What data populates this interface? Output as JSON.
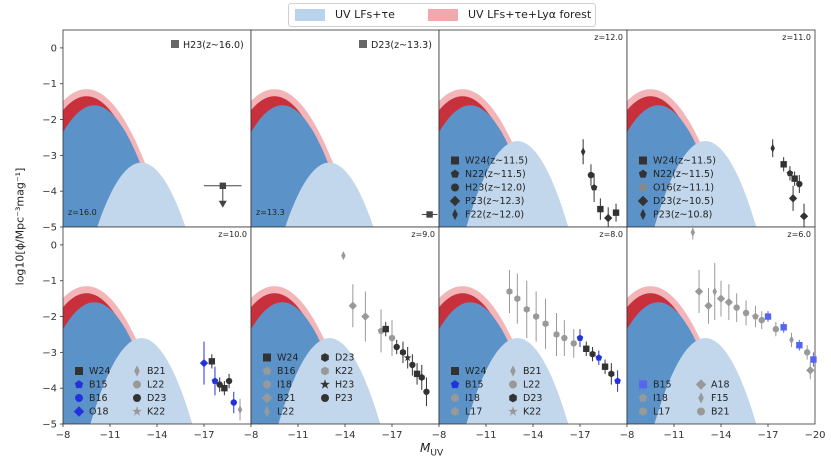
{
  "legend": [
    {
      "label": "UV LFs+τe",
      "color": "#b9d3ec"
    },
    {
      "label": "UV LFs+τe+Lyα forest",
      "color": "#f2a9ad"
    }
  ],
  "axes": {
    "xlabel": "M_UV",
    "ylabel": "log10[ϕ/Mpc⁻³mag⁻¹]"
  },
  "chart_data": {
    "type": "scatter",
    "grid": "2x4 panels, shared axes",
    "xlim": [
      -8,
      -20
    ],
    "ylim": [
      -5,
      0.5
    ],
    "x_ticks": [
      -8,
      -11,
      -14,
      -17
    ],
    "y_ticks": [
      0,
      -1,
      -2,
      -3,
      -4,
      -5
    ],
    "panels": [
      {
        "z_label": "z=16.0",
        "z_pos": "bottom-left",
        "legend": [
          {
            "marker": "square",
            "color": "#666666",
            "label": "H23(z~16.0)"
          }
        ],
        "points": [
          {
            "x": -18.2,
            "y": -3.85,
            "xerr": 1.2,
            "upper": true,
            "color": "#444444",
            "marker": "square"
          }
        ]
      },
      {
        "z_label": "z=13.3",
        "z_pos": "bottom-left",
        "legend": [
          {
            "marker": "square",
            "color": "#666666",
            "label": "D23(z~13.3)"
          }
        ],
        "points": [
          {
            "x": -19.4,
            "y": -4.65,
            "xerr": 0.5,
            "color": "#444444",
            "marker": "square"
          }
        ]
      },
      {
        "z_label": "z=12.0",
        "z_pos": "top-right",
        "legend": [
          {
            "marker": "square",
            "color": "#333333",
            "label": "W24(z~11.5)"
          },
          {
            "marker": "pentagon",
            "color": "#333333",
            "label": "N22(z~11.5)"
          },
          {
            "marker": "circle",
            "color": "#333333",
            "label": "H23(z~12.0)"
          },
          {
            "marker": "diamond",
            "color": "#333333",
            "label": "P23(z~12.3)"
          },
          {
            "marker": "thin-diamond",
            "color": "#333333",
            "label": "F22(z~12.0)"
          }
        ],
        "points": [
          {
            "x": -17.2,
            "y": -2.9,
            "err": 0.35,
            "color": "#333333",
            "marker": "thin-diamond"
          },
          {
            "x": -17.7,
            "y": -3.55,
            "err": 0.3,
            "color": "#333333",
            "marker": "circle"
          },
          {
            "x": -17.9,
            "y": -3.9,
            "err": 0.4,
            "color": "#333333",
            "marker": "pentagon"
          },
          {
            "x": -18.3,
            "y": -4.5,
            "err": 0.3,
            "color": "#333333",
            "marker": "square"
          },
          {
            "x": -18.8,
            "y": -4.75,
            "err": 0.3,
            "color": "#333333",
            "marker": "diamond"
          },
          {
            "x": -19.3,
            "y": -4.6,
            "err": 0.25,
            "color": "#333333",
            "marker": "square"
          }
        ]
      },
      {
        "z_label": "z=11.0",
        "z_pos": "top-right",
        "legend": [
          {
            "marker": "square",
            "color": "#333333",
            "label": "W24(z~11.5)"
          },
          {
            "marker": "pentagon",
            "color": "#333333",
            "label": "N22(z~11.5)"
          },
          {
            "marker": "circle",
            "color": "#888888",
            "label": "O16(z~11.1)"
          },
          {
            "marker": "diamond",
            "color": "#333333",
            "label": "D23(z~10.5)"
          },
          {
            "marker": "thin-diamond",
            "color": "#333333",
            "label": "P23(z~10.8)"
          }
        ],
        "points": [
          {
            "x": -17.3,
            "y": -2.8,
            "err": 0.25,
            "color": "#333333",
            "marker": "thin-diamond"
          },
          {
            "x": -18.0,
            "y": -3.25,
            "err": 0.2,
            "color": "#333333",
            "marker": "square"
          },
          {
            "x": -18.4,
            "y": -3.5,
            "err": 0.2,
            "color": "#333333",
            "marker": "pentagon"
          },
          {
            "x": -18.7,
            "y": -3.65,
            "err": 0.2,
            "color": "#333333",
            "marker": "square"
          },
          {
            "x": -19.0,
            "y": -3.8,
            "err": 0.25,
            "color": "#333333",
            "marker": "circle"
          },
          {
            "x": -18.6,
            "y": -4.2,
            "err": 0.35,
            "color": "#333333",
            "marker": "diamond"
          },
          {
            "x": -19.3,
            "y": -4.7,
            "err": 0.35,
            "color": "#333333",
            "marker": "diamond"
          }
        ]
      },
      {
        "z_label": "z=10.0",
        "z_pos": "top-right",
        "legend": [
          {
            "marker": "square",
            "color": "#333333",
            "label": "W24"
          },
          {
            "marker": "pentagon",
            "color": "#2233dd",
            "label": "B15"
          },
          {
            "marker": "circle",
            "color": "#2233dd",
            "label": "B16"
          },
          {
            "marker": "diamond",
            "color": "#2233dd",
            "label": "O18"
          },
          {
            "marker": "thin-diamond",
            "color": "#999999",
            "label": "B21"
          },
          {
            "marker": "circle",
            "color": "#999999",
            "label": "L22"
          },
          {
            "marker": "circle",
            "color": "#333333",
            "label": "D23"
          },
          {
            "marker": "star",
            "color": "#999999",
            "label": "K22"
          }
        ],
        "points": [
          {
            "x": -17.0,
            "y": -3.3,
            "err": 0.6,
            "color": "#2233dd",
            "marker": "diamond"
          },
          {
            "x": -17.5,
            "y": -3.25,
            "err": 0.2,
            "color": "#333333",
            "marker": "square"
          },
          {
            "x": -17.7,
            "y": -3.8,
            "err": 0.4,
            "color": "#2233dd",
            "marker": "pentagon"
          },
          {
            "x": -18.0,
            "y": -3.9,
            "err": 0.2,
            "color": "#333333",
            "marker": "circle"
          },
          {
            "x": -18.3,
            "y": -4.0,
            "err": 0.2,
            "color": "#333333",
            "marker": "square"
          },
          {
            "x": -18.6,
            "y": -3.8,
            "err": 0.2,
            "color": "#333333",
            "marker": "circle"
          },
          {
            "x": -18.9,
            "y": -4.4,
            "err": 0.3,
            "color": "#2233dd",
            "marker": "circle"
          },
          {
            "x": -19.3,
            "y": -4.6,
            "err": 0.3,
            "color": "#999999",
            "marker": "thin-diamond"
          }
        ]
      },
      {
        "z_label": "z=9.0",
        "z_pos": "top-right",
        "legend": [
          {
            "marker": "square",
            "color": "#333333",
            "label": "W24"
          },
          {
            "marker": "pentagon",
            "color": "#999999",
            "label": "B16"
          },
          {
            "marker": "circle",
            "color": "#999999",
            "label": "I18"
          },
          {
            "marker": "diamond",
            "color": "#999999",
            "label": "B21"
          },
          {
            "marker": "thin-diamond",
            "color": "#999999",
            "label": "L22"
          },
          {
            "marker": "hexagon",
            "color": "#333333",
            "label": "D23"
          },
          {
            "marker": "hexagon",
            "color": "#999999",
            "label": "K22"
          },
          {
            "marker": "star",
            "color": "#333333",
            "label": "H23"
          },
          {
            "marker": "circle",
            "color": "#333333",
            "label": "P23"
          }
        ],
        "points": [
          {
            "x": -13.9,
            "y": -0.3,
            "err": 0.1,
            "color": "#999999",
            "marker": "thin-diamond"
          },
          {
            "x": -14.5,
            "y": -1.7,
            "err": 0.6,
            "color": "#999999",
            "marker": "diamond"
          },
          {
            "x": -15.3,
            "y": -2.0,
            "err": 0.7,
            "color": "#999999",
            "marker": "diamond"
          },
          {
            "x": -16.3,
            "y": -2.4,
            "err": 0.6,
            "color": "#999999",
            "marker": "pentagon"
          },
          {
            "x": -16.6,
            "y": -2.35,
            "err": 0.2,
            "color": "#333333",
            "marker": "square"
          },
          {
            "x": -17.0,
            "y": -2.6,
            "err": 0.5,
            "color": "#999999",
            "marker": "circle"
          },
          {
            "x": -17.3,
            "y": -2.85,
            "err": 0.2,
            "color": "#333333",
            "marker": "circle"
          },
          {
            "x": -17.7,
            "y": -3.0,
            "err": 0.3,
            "color": "#333333",
            "marker": "hexagon"
          },
          {
            "x": -18.0,
            "y": -3.15,
            "err": 0.3,
            "color": "#333333",
            "marker": "star"
          },
          {
            "x": -18.3,
            "y": -3.35,
            "err": 0.3,
            "color": "#333333",
            "marker": "circle"
          },
          {
            "x": -18.6,
            "y": -3.6,
            "err": 0.3,
            "color": "#333333",
            "marker": "square"
          },
          {
            "x": -18.9,
            "y": -3.7,
            "err": 0.35,
            "color": "#333333",
            "marker": "hexagon"
          },
          {
            "x": -19.2,
            "y": -4.1,
            "err": 0.4,
            "color": "#333333",
            "marker": "circle"
          }
        ]
      },
      {
        "z_label": "z=8.0",
        "z_pos": "top-right",
        "legend": [
          {
            "marker": "square",
            "color": "#333333",
            "label": "W24"
          },
          {
            "marker": "pentagon",
            "color": "#2233dd",
            "label": "B15"
          },
          {
            "marker": "circle",
            "color": "#999999",
            "label": "I18"
          },
          {
            "marker": "hexagon",
            "color": "#999999",
            "label": "L17"
          },
          {
            "marker": "thin-diamond",
            "color": "#999999",
            "label": "B21"
          },
          {
            "marker": "circle",
            "color": "#999999",
            "label": "L22"
          },
          {
            "marker": "hexagon",
            "color": "#333333",
            "label": "D23"
          },
          {
            "marker": "star",
            "color": "#999999",
            "label": "K22"
          }
        ],
        "points": [
          {
            "x": -12.5,
            "y": -1.3,
            "err": 0.6,
            "color": "#999999",
            "marker": "hexagon"
          },
          {
            "x": -13.0,
            "y": -1.5,
            "err": 0.7,
            "color": "#999999",
            "marker": "hexagon"
          },
          {
            "x": -13.6,
            "y": -1.8,
            "err": 0.8,
            "color": "#999999",
            "marker": "hexagon"
          },
          {
            "x": -14.2,
            "y": -2.0,
            "err": 0.7,
            "color": "#999999",
            "marker": "hexagon"
          },
          {
            "x": -14.8,
            "y": -2.2,
            "err": 0.7,
            "color": "#999999",
            "marker": "hexagon"
          },
          {
            "x": -15.5,
            "y": -2.5,
            "err": 0.6,
            "color": "#999999",
            "marker": "hexagon"
          },
          {
            "x": -16.0,
            "y": -2.6,
            "err": 0.5,
            "color": "#999999",
            "marker": "circle"
          },
          {
            "x": -16.6,
            "y": -2.75,
            "err": 0.4,
            "color": "#999999",
            "marker": "circle"
          },
          {
            "x": -17.0,
            "y": -2.6,
            "err": 0.25,
            "color": "#2233dd",
            "marker": "pentagon"
          },
          {
            "x": -17.4,
            "y": -2.9,
            "err": 0.2,
            "color": "#333333",
            "marker": "square"
          },
          {
            "x": -17.8,
            "y": -3.05,
            "err": 0.2,
            "color": "#333333",
            "marker": "hexagon"
          },
          {
            "x": -18.2,
            "y": -3.15,
            "err": 0.2,
            "color": "#2233dd",
            "marker": "pentagon"
          },
          {
            "x": -18.6,
            "y": -3.4,
            "err": 0.2,
            "color": "#333333",
            "marker": "square"
          },
          {
            "x": -19.0,
            "y": -3.6,
            "err": 0.3,
            "color": "#333333",
            "marker": "hexagon"
          },
          {
            "x": -19.4,
            "y": -3.8,
            "err": 0.3,
            "color": "#2233dd",
            "marker": "pentagon"
          }
        ]
      },
      {
        "z_label": "z=6.0",
        "z_pos": "top-right",
        "legend": [
          {
            "marker": "square",
            "color": "#5566ee",
            "label": "B15"
          },
          {
            "marker": "pentagon",
            "color": "#999999",
            "label": "I18"
          },
          {
            "marker": "circle",
            "color": "#999999",
            "label": "L17"
          },
          {
            "marker": "diamond",
            "color": "#999999",
            "label": "A18"
          },
          {
            "marker": "thin-diamond",
            "color": "#999999",
            "label": "F15"
          },
          {
            "marker": "circle",
            "color": "#999999",
            "label": "B21"
          }
        ],
        "points": [
          {
            "x": -12.2,
            "y": 0.35,
            "err": 0.2,
            "color": "#999999",
            "marker": "thin-diamond"
          },
          {
            "x": -12.6,
            "y": -1.3,
            "err": 0.6,
            "color": "#999999",
            "marker": "diamond"
          },
          {
            "x": -13.2,
            "y": -1.7,
            "err": 0.5,
            "color": "#999999",
            "marker": "diamond"
          },
          {
            "x": -13.6,
            "y": -1.3,
            "err": 0.8,
            "color": "#999999",
            "marker": "thin-diamond"
          },
          {
            "x": -14.0,
            "y": -1.5,
            "err": 0.5,
            "color": "#999999",
            "marker": "diamond"
          },
          {
            "x": -14.5,
            "y": -1.6,
            "err": 0.5,
            "color": "#999999",
            "marker": "diamond"
          },
          {
            "x": -15.0,
            "y": -1.75,
            "err": 0.4,
            "color": "#999999",
            "marker": "circle"
          },
          {
            "x": -15.6,
            "y": -1.9,
            "err": 0.35,
            "color": "#999999",
            "marker": "circle"
          },
          {
            "x": -16.2,
            "y": -2.0,
            "err": 0.3,
            "color": "#999999",
            "marker": "pentagon"
          },
          {
            "x": -16.6,
            "y": -2.1,
            "err": 0.25,
            "color": "#999999",
            "marker": "circle"
          },
          {
            "x": -17.0,
            "y": -2.0,
            "err": 0.15,
            "color": "#5566ee",
            "marker": "square"
          },
          {
            "x": -17.5,
            "y": -2.35,
            "err": 0.2,
            "color": "#999999",
            "marker": "circle"
          },
          {
            "x": -18.0,
            "y": -2.3,
            "err": 0.15,
            "color": "#5566ee",
            "marker": "square"
          },
          {
            "x": -18.5,
            "y": -2.65,
            "err": 0.2,
            "color": "#999999",
            "marker": "thin-diamond"
          },
          {
            "x": -19.0,
            "y": -2.8,
            "err": 0.15,
            "color": "#5566ee",
            "marker": "square"
          },
          {
            "x": -19.5,
            "y": -3.0,
            "err": 0.2,
            "color": "#999999",
            "marker": "circle"
          },
          {
            "x": -19.9,
            "y": -3.2,
            "err": 0.2,
            "color": "#5566ee",
            "marker": "square"
          },
          {
            "x": -19.7,
            "y": -3.5,
            "err": 0.25,
            "color": "#999999",
            "marker": "diamond"
          }
        ]
      }
    ],
    "bands": [
      {
        "name": "UV LFs+τe",
        "color_dark": "#5b93c9",
        "color_light": "#c2d7ec"
      },
      {
        "name": "UV LFs+τe+Lyα forest",
        "color_dark": "#c8303c",
        "color_light": "#eda0a6"
      }
    ]
  }
}
